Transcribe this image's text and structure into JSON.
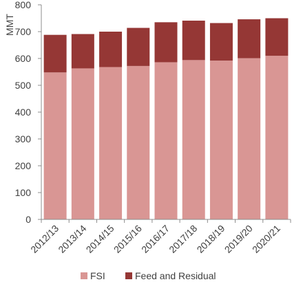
{
  "chart_data": {
    "type": "bar",
    "stacked": true,
    "categories": [
      "2012/13",
      "2013/14",
      "2014/15",
      "2015/16",
      "2016/17",
      "2017/18",
      "2018/19",
      "2019/20",
      "2020/21"
    ],
    "series": [
      {
        "name": "FSI",
        "color": "#d99694",
        "values": [
          548,
          563,
          568,
          572,
          586,
          594,
          592,
          601,
          610
        ]
      },
      {
        "name": "Feed and Residual",
        "color": "#953735",
        "values": [
          140,
          128,
          132,
          142,
          149,
          147,
          140,
          145,
          140
        ]
      }
    ],
    "title": "",
    "xlabel": "",
    "ylabel": "MMT",
    "ylim": [
      0,
      800
    ],
    "yticks": [
      0,
      100,
      200,
      300,
      400,
      500,
      600,
      700,
      800
    ],
    "grid": false,
    "legend_position": "bottom"
  }
}
